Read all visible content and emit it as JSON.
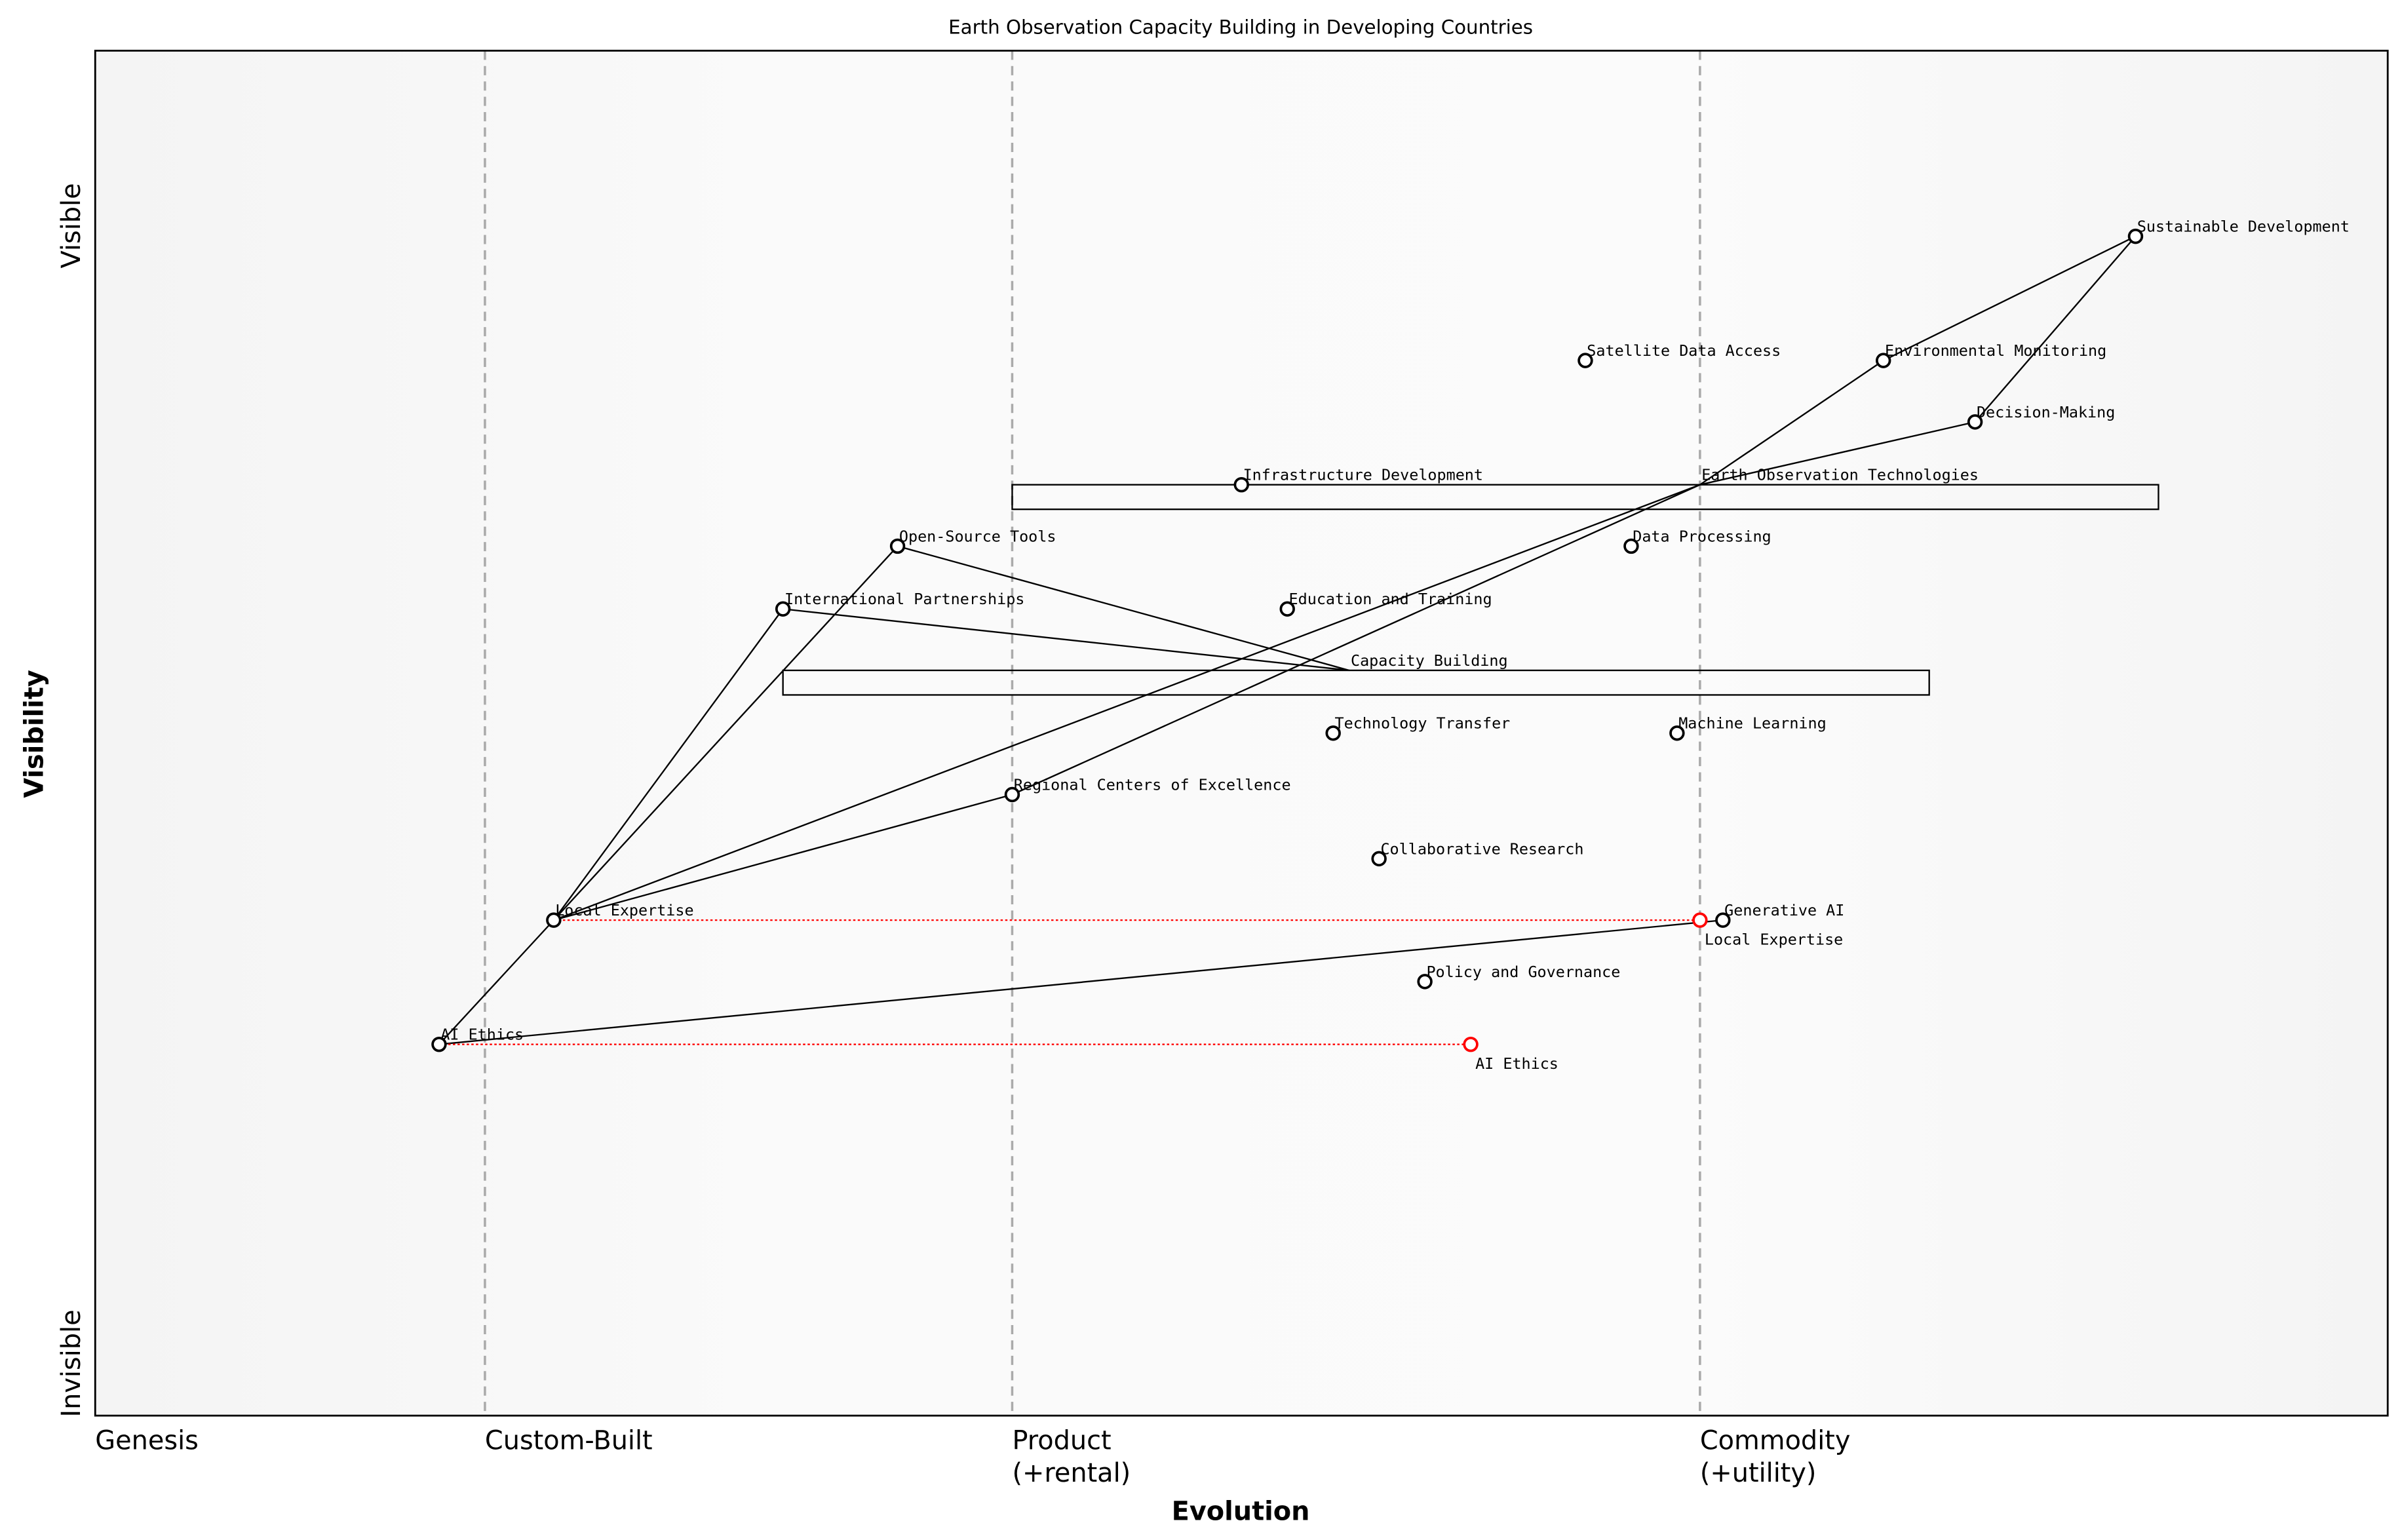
{
  "title": "Earth Observation Capacity Building in Developing Countries",
  "y_axis": {
    "label": "Visibility",
    "top": "Visible",
    "bottom": "Invisible"
  },
  "x_axis": {
    "label": "Evolution",
    "stages": [
      {
        "label": "Genesis",
        "sub": "",
        "at": 0.0
      },
      {
        "label": "Custom-Built",
        "sub": "",
        "at": 0.17
      },
      {
        "label": "Product",
        "sub": "(+rental)",
        "at": 0.4
      },
      {
        "label": "Commodity",
        "sub": "(+utility)",
        "at": 0.7
      }
    ]
  },
  "colors": {
    "node": "#000000",
    "evolved": "#ff0000",
    "link": "#000000",
    "stage_line": "#aaaaaa"
  },
  "components": [
    {
      "name": "Sustainable Development",
      "evolution": 0.89,
      "visibility": 0.864
    },
    {
      "name": "Environmental Monitoring",
      "evolution": 0.78,
      "visibility": 0.773
    },
    {
      "name": "Satellite Data Access",
      "evolution": 0.65,
      "visibility": 0.773
    },
    {
      "name": "Decision-Making",
      "evolution": 0.82,
      "visibility": 0.728
    },
    {
      "name": "Infrastructure Development",
      "evolution": 0.5,
      "visibility": 0.682
    },
    {
      "name": "Earth Observation Technologies",
      "evolution": 0.7,
      "visibility": 0.682,
      "hidden_marker": true
    },
    {
      "name": "Data Processing",
      "evolution": 0.67,
      "visibility": 0.637
    },
    {
      "name": "Open-Source Tools",
      "evolution": 0.35,
      "visibility": 0.637
    },
    {
      "name": "International Partnerships",
      "evolution": 0.3,
      "visibility": 0.591
    },
    {
      "name": "Education and Training",
      "evolution": 0.52,
      "visibility": 0.591
    },
    {
      "name": "Capacity Building",
      "evolution": 0.547,
      "visibility": 0.546,
      "hidden_marker": true
    },
    {
      "name": "Technology Transfer",
      "evolution": 0.54,
      "visibility": 0.5
    },
    {
      "name": "Machine Learning",
      "evolution": 0.69,
      "visibility": 0.5
    },
    {
      "name": "Regional Centers of Excellence",
      "evolution": 0.4,
      "visibility": 0.455
    },
    {
      "name": "Collaborative Research",
      "evolution": 0.56,
      "visibility": 0.408
    },
    {
      "name": "Local Expertise",
      "evolution": 0.2,
      "visibility": 0.363
    },
    {
      "name": "Generative AI",
      "evolution": 0.71,
      "visibility": 0.363
    },
    {
      "name": "Policy and Governance",
      "evolution": 0.58,
      "visibility": 0.318
    },
    {
      "name": "AI Ethics",
      "evolution": 0.15,
      "visibility": 0.272
    }
  ],
  "evolved": [
    {
      "name": "Local Expertise",
      "from": 0.2,
      "to": 0.7,
      "visibility": 0.363
    },
    {
      "name": "AI Ethics",
      "from": 0.15,
      "to": 0.6,
      "visibility": 0.272
    }
  ],
  "inertia": [
    {
      "component": "Earth Observation Technologies",
      "from": 0.4,
      "to": 0.9
    },
    {
      "component": "Capacity Building",
      "from": 0.3,
      "to": 0.8
    }
  ],
  "links": [
    [
      "Sustainable Development",
      "Environmental Monitoring"
    ],
    [
      "Sustainable Development",
      "Decision-Making"
    ],
    [
      "Environmental Monitoring",
      "Earth Observation Technologies"
    ],
    [
      "Decision-Making",
      "Earth Observation Technologies"
    ],
    [
      "Earth Observation Technologies",
      "Local Expertise"
    ],
    [
      "Earth Observation Technologies",
      "Regional Centers of Excellence"
    ],
    [
      "Capacity Building",
      "Open-Source Tools"
    ],
    [
      "Capacity Building",
      "International Partnerships"
    ],
    [
      "Local Expertise",
      "International Partnerships"
    ],
    [
      "Local Expertise",
      "Open-Source Tools"
    ],
    [
      "Local Expertise",
      "Regional Centers of Excellence"
    ],
    [
      "AI Ethics",
      "Local Expertise"
    ],
    [
      "AI Ethics",
      "Generative AI"
    ]
  ]
}
